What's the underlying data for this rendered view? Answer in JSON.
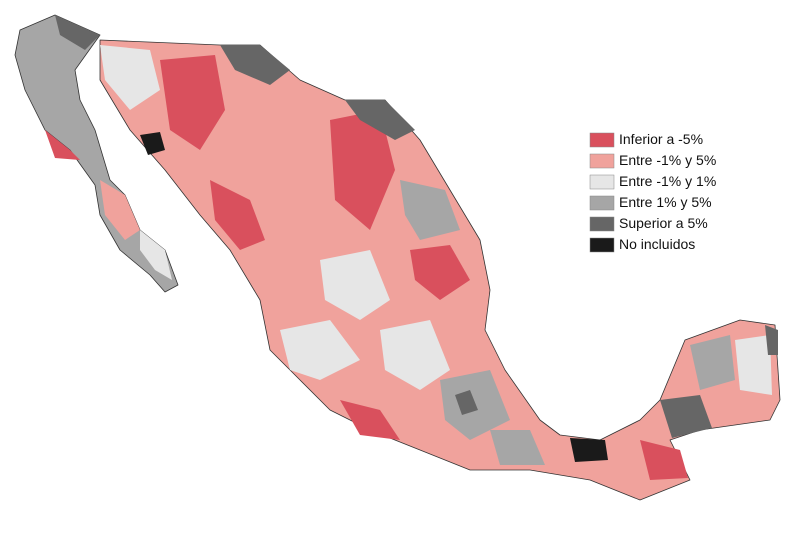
{
  "legend": {
    "items": [
      {
        "label": "Inferior a -5%",
        "color": "#d9505d"
      },
      {
        "label": "Entre -1% y 5%",
        "color": "#f0a29c"
      },
      {
        "label": "Entre -1% y 1%",
        "color": "#e6e6e6"
      },
      {
        "label": "Entre 1% y 5%",
        "color": "#a6a6a6"
      },
      {
        "label": "Superior a 5%",
        "color": "#666666"
      },
      {
        "label": "No incluidos",
        "color": "#1a1a1a"
      }
    ]
  }
}
